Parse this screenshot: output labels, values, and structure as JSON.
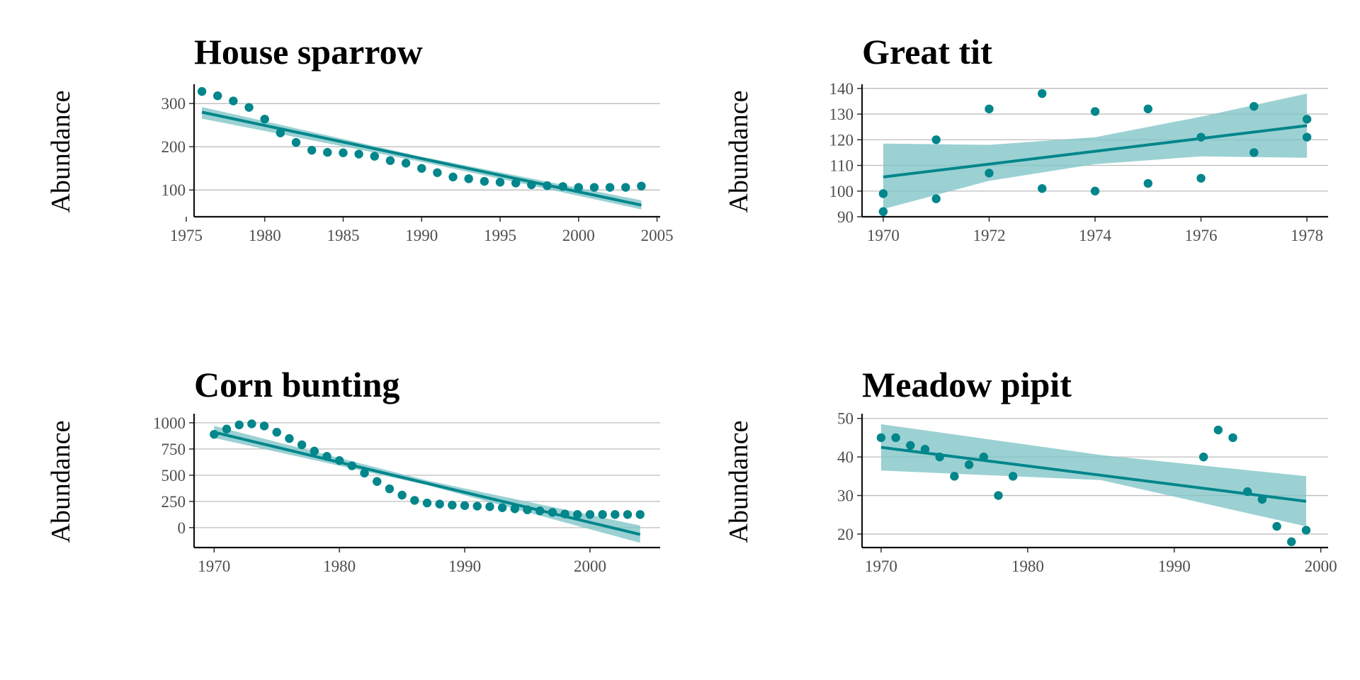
{
  "chart_data": [
    {
      "type": "scatter",
      "title": "House sparrow",
      "ylabel": "Abundance",
      "xlabel": "",
      "grid": "horizontal major",
      "color": "#00868B",
      "band_color": "#7FC4C6",
      "xlim": [
        1975.5,
        2005.2
      ],
      "ylim": [
        38,
        338
      ],
      "x_ticks": [
        1975,
        1980,
        1985,
        1990,
        1995,
        2000,
        2005
      ],
      "y_ticks": [
        100,
        200,
        300
      ],
      "points": {
        "x": [
          1976,
          1977,
          1978,
          1979,
          1980,
          1981,
          1982,
          1983,
          1984,
          1985,
          1986,
          1987,
          1988,
          1989,
          1990,
          1991,
          1992,
          1993,
          1994,
          1995,
          1996,
          1997,
          1998,
          1999,
          2000,
          2001,
          2002,
          2003,
          2004
        ],
        "y": [
          328,
          318,
          306,
          291,
          264,
          232,
          210,
          192,
          187,
          186,
          183,
          178,
          168,
          162,
          150,
          140,
          130,
          126,
          120,
          118,
          116,
          112,
          110,
          108,
          106,
          106,
          106,
          106,
          109
        ]
      },
      "trend": {
        "x": [
          1976,
          2004
        ],
        "y": [
          280,
          65
        ]
      },
      "band": {
        "x": [
          1976,
          1990,
          2004
        ],
        "lower": [
          265,
          165,
          55
        ],
        "upper": [
          292,
          177,
          76
        ]
      }
    },
    {
      "type": "scatter",
      "title": "Great tit",
      "ylabel": "Abundance",
      "xlabel": "",
      "grid": "horizontal major",
      "color": "#00868B",
      "band_color": "#7FC4C6",
      "xlim": [
        1969.6,
        1978.4
      ],
      "ylim": [
        90,
        140.5
      ],
      "x_ticks": [
        1970,
        1972,
        1974,
        1976,
        1978
      ],
      "y_ticks": [
        90,
        100,
        110,
        120,
        130,
        140
      ],
      "points": {
        "x": [
          1970,
          1970,
          1971,
          1971,
          1972,
          1972,
          1973,
          1973,
          1974,
          1974,
          1975,
          1975,
          1976,
          1976,
          1977,
          1977,
          1978,
          1978
        ],
        "y": [
          99,
          92,
          120,
          97,
          132,
          107,
          138,
          101,
          131,
          100,
          132,
          103,
          121,
          105,
          133,
          115,
          128,
          121
        ]
      },
      "trend": {
        "x": [
          1970,
          1978
        ],
        "y": [
          105.5,
          125.5
        ]
      },
      "band": {
        "x": [
          1970,
          1972,
          1974,
          1976,
          1978
        ],
        "lower": [
          93,
          104,
          110.5,
          113.5,
          113
        ],
        "upper": [
          118.5,
          118,
          121,
          129,
          138
        ]
      }
    },
    {
      "type": "scatter",
      "title": "Corn bunting",
      "ylabel": "Abundance",
      "xlabel": "",
      "grid": "horizontal major",
      "color": "#00868B",
      "band_color": "#7FC4C6",
      "xlim": [
        1968.4,
        2005.6
      ],
      "ylim": [
        -190,
        1060
      ],
      "x_ticks": [
        1970,
        1980,
        1990,
        2000
      ],
      "y_ticks": [
        0,
        250,
        500,
        750,
        1000
      ],
      "points": {
        "x": [
          1970,
          1971,
          1972,
          1973,
          1974,
          1975,
          1976,
          1977,
          1978,
          1979,
          1980,
          1981,
          1982,
          1983,
          1984,
          1985,
          1986,
          1987,
          1988,
          1989,
          1990,
          1991,
          1992,
          1993,
          1994,
          1995,
          1996,
          1997,
          1998,
          1999,
          2000,
          2001,
          2002,
          2003,
          2004
        ],
        "y": [
          890,
          940,
          980,
          990,
          970,
          910,
          850,
          790,
          730,
          680,
          640,
          590,
          520,
          440,
          370,
          310,
          260,
          235,
          225,
          215,
          210,
          205,
          200,
          190,
          180,
          170,
          160,
          145,
          130,
          125,
          125,
          125,
          125,
          125,
          125
        ]
      },
      "trend": {
        "x": [
          1970,
          2004
        ],
        "y": [
          910,
          -65
        ]
      },
      "band": {
        "x": [
          1970,
          1987,
          2004
        ],
        "lower": [
          855,
          405,
          -145
        ],
        "upper": [
          970,
          450,
          20
        ]
      }
    },
    {
      "type": "scatter",
      "title": "Meadow pipit",
      "ylabel": "Abundance",
      "xlabel": "",
      "grid": "horizontal major",
      "color": "#00868B",
      "band_color": "#7FC4C6",
      "xlim": [
        1968.7,
        2000.5
      ],
      "ylim": [
        16.5,
        50.5
      ],
      "x_ticks": [
        1970,
        1980,
        1990,
        2000
      ],
      "y_ticks": [
        20,
        30,
        40,
        50
      ],
      "points": {
        "x": [
          1970,
          1971,
          1972,
          1973,
          1974,
          1975,
          1976,
          1977,
          1978,
          1979,
          1992,
          1993,
          1994,
          1995,
          1996,
          1997,
          1998,
          1999
        ],
        "y": [
          45,
          45,
          43,
          42,
          40,
          35,
          38,
          40,
          30,
          35,
          40,
          47,
          45,
          31,
          29,
          22,
          18,
          21
        ]
      },
      "trend": {
        "x": [
          1970,
          1999
        ],
        "y": [
          42.5,
          28.5
        ]
      },
      "band": {
        "x": [
          1970,
          1985,
          1999
        ],
        "lower": [
          36.5,
          34,
          22
        ],
        "upper": [
          48.5,
          40.5,
          35
        ]
      }
    }
  ]
}
